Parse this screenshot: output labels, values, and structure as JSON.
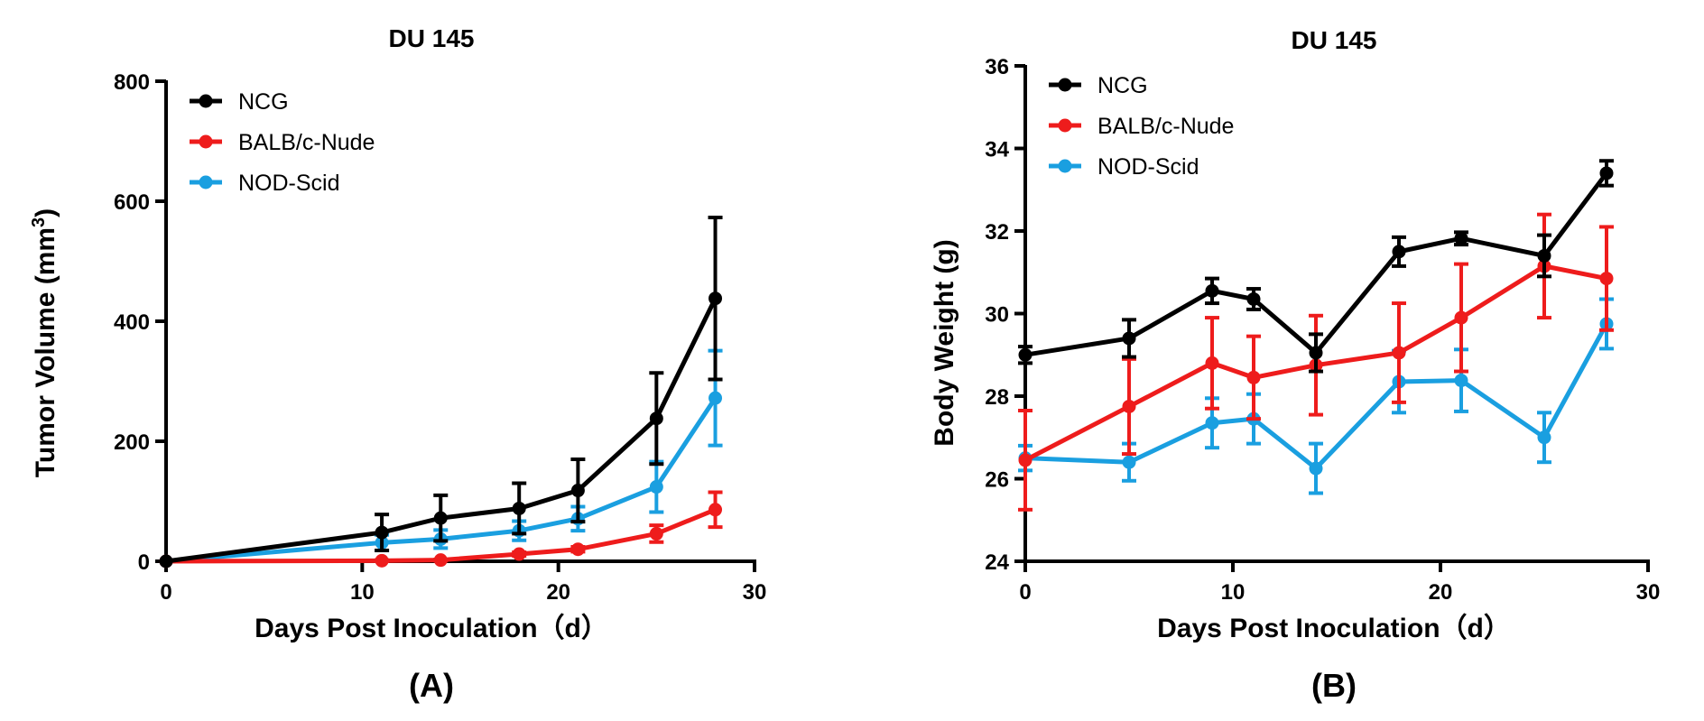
{
  "chart_data": [
    {
      "type": "line",
      "panel_label": "(A)",
      "title": "DU 145",
      "xlabel": "Days Post Inoculation（d）",
      "ylabel": "Tumor Volume (mm",
      "ylabel_sup": "3",
      "ylabel_close": ")",
      "xlim": [
        0,
        30
      ],
      "ylim": [
        0,
        800
      ],
      "xticks": [
        0,
        10,
        20,
        30
      ],
      "yticks": [
        0,
        200,
        400,
        600,
        800
      ],
      "grid": false,
      "legend": "top-left",
      "series": [
        {
          "name": "NCG",
          "color": "#000000",
          "x": [
            0,
            11,
            14,
            18,
            21,
            25,
            28
          ],
          "y": [
            0,
            48,
            72,
            88,
            118,
            238,
            438
          ],
          "err": [
            0,
            30,
            38,
            42,
            52,
            76,
            135
          ]
        },
        {
          "name": "BALB/c-Nude",
          "color": "#ee1c1c",
          "x": [
            0,
            11,
            14,
            18,
            21,
            25,
            28
          ],
          "y": [
            0,
            1,
            2,
            12,
            20,
            46,
            86
          ],
          "err": [
            0,
            1,
            1,
            3,
            4,
            14,
            29
          ]
        },
        {
          "name": "NOD-Scid",
          "color": "#1a9fe0",
          "x": [
            0,
            11,
            14,
            18,
            21,
            25,
            28
          ],
          "y": [
            0,
            31,
            37,
            51,
            71,
            124,
            272
          ],
          "err": [
            0,
            13,
            15,
            16,
            20,
            42,
            79
          ]
        }
      ]
    },
    {
      "type": "line",
      "panel_label": "(B)",
      "title": "DU 145",
      "xlabel": "Days Post Inoculation（d）",
      "ylabel": "Body Weight (g)",
      "xlim": [
        0,
        30
      ],
      "ylim": [
        24,
        36
      ],
      "xticks": [
        0,
        10,
        20,
        30
      ],
      "yticks": [
        24,
        26,
        28,
        30,
        32,
        34,
        36
      ],
      "grid": false,
      "legend": "top-left",
      "series": [
        {
          "name": "NCG",
          "color": "#000000",
          "x": [
            0,
            5,
            9,
            11,
            14,
            18,
            21,
            25,
            28
          ],
          "y": [
            29.0,
            29.4,
            30.55,
            30.35,
            29.05,
            31.5,
            31.82,
            31.4,
            33.4
          ],
          "err": [
            0.2,
            0.45,
            0.3,
            0.25,
            0.45,
            0.35,
            0.15,
            0.5,
            0.3
          ]
        },
        {
          "name": "BALB/c-Nude",
          "color": "#ee1c1c",
          "x": [
            0,
            5,
            9,
            11,
            14,
            18,
            21,
            25,
            28
          ],
          "y": [
            26.45,
            27.75,
            28.8,
            28.45,
            28.75,
            29.05,
            29.9,
            31.15,
            30.85
          ],
          "err": [
            1.2,
            1.15,
            1.1,
            1.0,
            1.2,
            1.2,
            1.3,
            1.25,
            1.25
          ]
        },
        {
          "name": "NOD-Scid",
          "color": "#1a9fe0",
          "x": [
            0,
            5,
            9,
            11,
            14,
            18,
            21,
            25,
            28
          ],
          "y": [
            26.5,
            26.4,
            27.35,
            27.45,
            26.25,
            28.35,
            28.38,
            27.0,
            29.75
          ],
          "err": [
            0.3,
            0.45,
            0.6,
            0.6,
            0.6,
            0.75,
            0.75,
            0.6,
            0.6
          ]
        }
      ]
    }
  ]
}
